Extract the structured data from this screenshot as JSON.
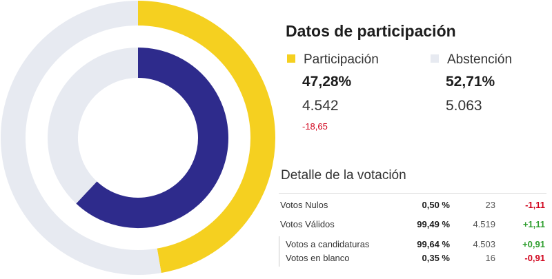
{
  "colors": {
    "participation": "#f5d020",
    "abstention": "#e7eaf1",
    "inner_value": "#2e2b8c",
    "inner_rest": "#e7eaf1",
    "negative": "#d0021b",
    "positive": "#2e9e2e"
  },
  "chart_data": {
    "type": "pie",
    "title": "Datos de participación",
    "rings": [
      {
        "name": "Participación / Abstención",
        "slices": [
          {
            "label": "Participación",
            "percent": 47.28,
            "count": 4542
          },
          {
            "label": "Abstención",
            "percent": 52.71,
            "count": 5063
          }
        ]
      },
      {
        "name": "",
        "slices": [
          {
            "label": "",
            "percent": 62
          },
          {
            "label": "",
            "percent": 38
          }
        ]
      }
    ]
  },
  "participation": {
    "title": "Datos de participación",
    "participacion": {
      "label": "Participación",
      "percent": "47,28%",
      "count": "4.542",
      "diff": "-18,65"
    },
    "abstencion": {
      "label": "Abstención",
      "percent": "52,71%",
      "count": "5.063"
    }
  },
  "detail": {
    "title": "Detalle de la votación",
    "rows": [
      {
        "label": "Votos Nulos",
        "percent": "0,50 %",
        "count": "23",
        "diff": "-1,11"
      },
      {
        "label": "Votos Válidos",
        "percent": "99,49 %",
        "count": "4.519",
        "diff": "+1,11"
      },
      {
        "label": "Votos a candidaturas",
        "percent": "99,64 %",
        "count": "4.503",
        "diff": "+0,91"
      },
      {
        "label": "Votos en blanco",
        "percent": "0,35 %",
        "count": "16",
        "diff": "-0,91"
      }
    ]
  }
}
